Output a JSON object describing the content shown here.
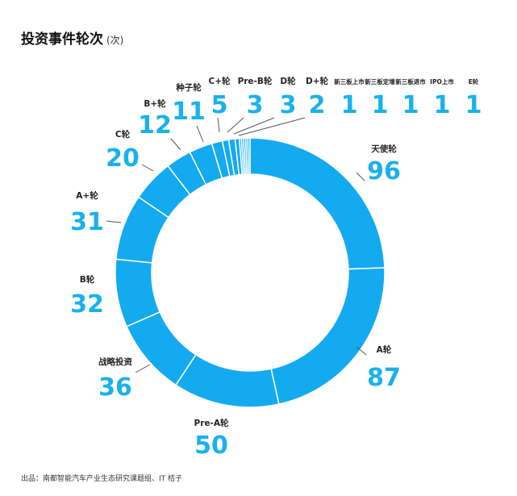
{
  "title": "投资事件轮次",
  "unit": "(次)",
  "source": "出品：南都智能汽车产业生态研究课题组、IT 桔子",
  "colors": {
    "slice": "#14aaf0",
    "value": "#19b1ec",
    "separator": "#ffffff",
    "leader": "#555555"
  },
  "chart_data": {
    "type": "pie",
    "donut": true,
    "categories": [
      "天使轮",
      "A轮",
      "Pre-A轮",
      "战略投资",
      "B轮",
      "A+轮",
      "C轮",
      "B+轮",
      "种子轮",
      "C+轮",
      "Pre-B轮",
      "D轮",
      "D+轮",
      "新三板上市",
      "新三板定增",
      "新三板退市",
      "IPO上市",
      "E轮"
    ],
    "values": [
      96,
      87,
      50,
      36,
      32,
      31,
      20,
      12,
      11,
      5,
      3,
      3,
      2,
      1,
      1,
      1,
      1,
      1
    ]
  }
}
